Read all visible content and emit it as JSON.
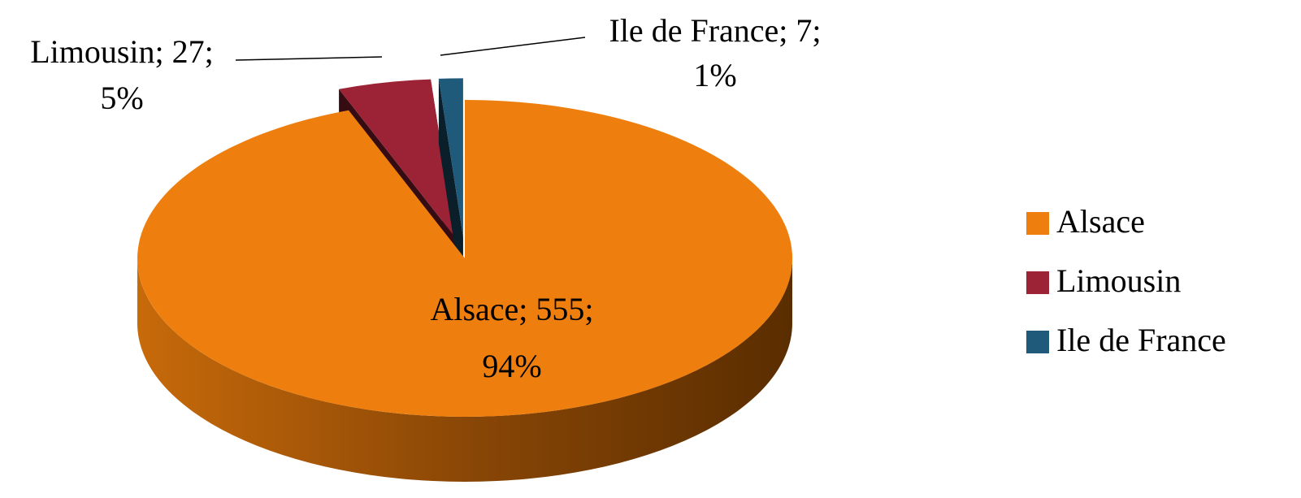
{
  "chart_data": {
    "type": "pie",
    "categories": [
      "Alsace",
      "Limousin",
      "Ile de France"
    ],
    "values": [
      555,
      27,
      7
    ],
    "value_labels": [
      "Alsace; 555;",
      "Limousin; 27;",
      "Ile de France; 7;"
    ],
    "percentages": [
      94,
      5,
      1
    ],
    "percentage_labels": [
      "94%",
      "5%",
      "1%"
    ],
    "colors": [
      "#ee7f0e",
      "#9b2335",
      "#1f5a7a"
    ],
    "legend": "right"
  }
}
